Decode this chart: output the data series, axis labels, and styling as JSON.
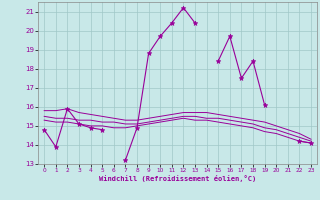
{
  "xlabel": "Windchill (Refroidissement éolien,°C)",
  "bg_color": "#c8e8e8",
  "grid_color": "#a0c8c8",
  "line_color": "#990099",
  "hours": [
    0,
    1,
    2,
    3,
    4,
    5,
    6,
    7,
    8,
    9,
    10,
    11,
    12,
    13,
    14,
    15,
    16,
    17,
    18,
    19,
    20,
    21,
    22,
    23
  ],
  "series1": [
    14.8,
    13.9,
    15.9,
    15.1,
    14.9,
    14.8,
    null,
    13.2,
    14.9,
    18.8,
    19.7,
    20.4,
    21.2,
    20.4,
    null,
    18.4,
    19.7,
    17.5,
    18.4,
    16.1,
    null,
    null,
    14.2,
    14.1
  ],
  "series2": [
    15.8,
    15.8,
    15.9,
    15.7,
    15.6,
    15.5,
    15.4,
    15.3,
    15.3,
    15.4,
    15.5,
    15.6,
    15.7,
    15.7,
    15.7,
    15.6,
    15.5,
    15.4,
    15.3,
    15.2,
    15.0,
    14.8,
    14.6,
    14.3
  ],
  "series3": [
    15.5,
    15.4,
    15.4,
    15.3,
    15.3,
    15.2,
    15.2,
    15.1,
    15.1,
    15.2,
    15.3,
    15.4,
    15.5,
    15.5,
    15.4,
    15.4,
    15.3,
    15.2,
    15.1,
    14.9,
    14.8,
    14.6,
    14.4,
    14.2
  ],
  "series4": [
    15.3,
    15.2,
    15.2,
    15.1,
    15.0,
    15.0,
    14.9,
    14.9,
    15.0,
    15.1,
    15.2,
    15.3,
    15.4,
    15.3,
    15.3,
    15.2,
    15.1,
    15.0,
    14.9,
    14.7,
    14.6,
    14.4,
    14.2,
    14.1
  ],
  "ylim": [
    13.0,
    21.5
  ],
  "yticks": [
    13,
    14,
    15,
    16,
    17,
    18,
    19,
    20,
    21
  ],
  "xticks": [
    0,
    1,
    2,
    3,
    4,
    5,
    6,
    7,
    8,
    9,
    10,
    11,
    12,
    13,
    14,
    15,
    16,
    17,
    18,
    19,
    20,
    21,
    22,
    23
  ]
}
